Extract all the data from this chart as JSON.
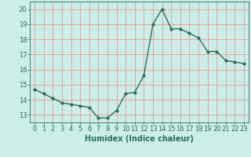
{
  "x": [
    0,
    1,
    2,
    3,
    4,
    5,
    6,
    7,
    8,
    9,
    10,
    11,
    12,
    13,
    14,
    15,
    16,
    17,
    18,
    19,
    20,
    21,
    22,
    23
  ],
  "y": [
    14.7,
    14.4,
    14.1,
    13.8,
    13.7,
    13.6,
    13.5,
    12.8,
    12.8,
    13.3,
    14.4,
    14.5,
    15.6,
    19.0,
    20.0,
    18.7,
    18.7,
    18.4,
    18.1,
    17.2,
    17.2,
    16.6,
    16.5,
    16.4
  ],
  "line_color": "#2d6b5e",
  "marker": "o",
  "marker_size": 2,
  "bg_color": "#cceee8",
  "grid_color": "#ee8888",
  "xlabel": "Humidex (Indice chaleur)",
  "xlim": [
    -0.5,
    23.5
  ],
  "ylim": [
    12.5,
    20.5
  ],
  "yticks": [
    13,
    14,
    15,
    16,
    17,
    18,
    19,
    20
  ],
  "xticks": [
    0,
    1,
    2,
    3,
    4,
    5,
    6,
    7,
    8,
    9,
    10,
    11,
    12,
    13,
    14,
    15,
    16,
    17,
    18,
    19,
    20,
    21,
    22,
    23
  ],
  "xlabel_fontsize": 7,
  "tick_fontsize": 6,
  "line_width": 1.0
}
